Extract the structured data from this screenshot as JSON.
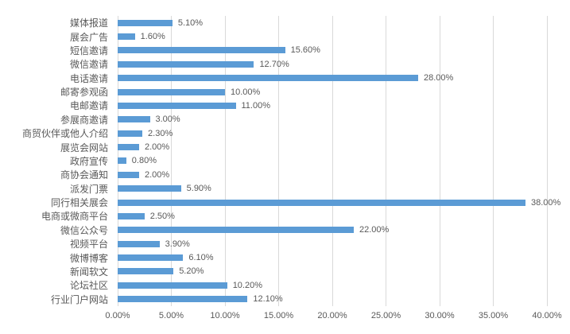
{
  "chart_data": {
    "type": "bar",
    "orientation": "horizontal",
    "title": "",
    "xlabel": "",
    "ylabel": "",
    "categories": [
      "媒体报道",
      "展会广告",
      "短信邀请",
      "微信邀请",
      "电话邀请",
      "邮寄参观函",
      "电邮邀请",
      "参展商邀请",
      "商贸伙伴或他人介绍",
      "展览会网站",
      "政府宣传",
      "商协会通知",
      "派发门票",
      "同行相关展会",
      "电商或微商平台",
      "微信公众号",
      "视频平台",
      "微博博客",
      "新闻软文",
      "论坛社区",
      "行业门户网站"
    ],
    "values": [
      5.1,
      1.6,
      15.6,
      12.7,
      28.0,
      10.0,
      11.0,
      3.0,
      2.3,
      2.0,
      0.8,
      2.0,
      5.9,
      38.0,
      2.5,
      22.0,
      3.9,
      6.1,
      5.2,
      10.2,
      12.1
    ],
    "value_labels": [
      "5.10%",
      "1.60%",
      "15.60%",
      "12.70%",
      "28.00%",
      "10.00%",
      "11.00%",
      "3.00%",
      "2.30%",
      "2.00%",
      "0.80%",
      "2.00%",
      "5.90%",
      "38.00%",
      "2.50%",
      "22.00%",
      "3.90%",
      "6.10%",
      "5.20%",
      "10.20%",
      "12.10%"
    ],
    "x_ticks": [
      "0.00%",
      "5.00%",
      "10.00%",
      "15.00%",
      "20.00%",
      "25.00%",
      "30.00%",
      "35.00%",
      "40.00%"
    ],
    "x_tick_values": [
      0,
      5,
      10,
      15,
      20,
      25,
      30,
      35,
      40
    ],
    "xlim": [
      0,
      40
    ],
    "grid": true,
    "legend": "none",
    "colors": {
      "bar": "#5b9bd5",
      "gridline": "#d9d9d9",
      "text": "#595959"
    }
  }
}
